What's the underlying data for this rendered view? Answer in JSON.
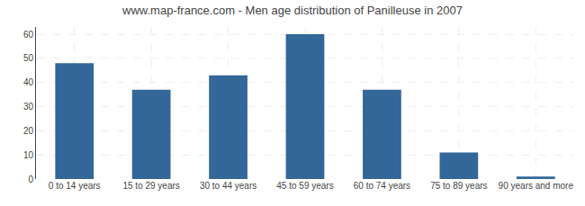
{
  "chart_data": {
    "type": "bar",
    "title": "www.map-france.com - Men age distribution of Panilleuse in 2007",
    "categories": [
      "0 to 14 years",
      "15 to 29 years",
      "30 to 44 years",
      "45 to 59 years",
      "60 to 74 years",
      "75 to 89 years",
      "90 years and more"
    ],
    "values": [
      48,
      37,
      43,
      60,
      37,
      11,
      1
    ],
    "color": "#336699",
    "ylim": [
      0,
      63
    ],
    "yticks": [
      0,
      10,
      20,
      30,
      40,
      50,
      60
    ],
    "grid": true
  }
}
